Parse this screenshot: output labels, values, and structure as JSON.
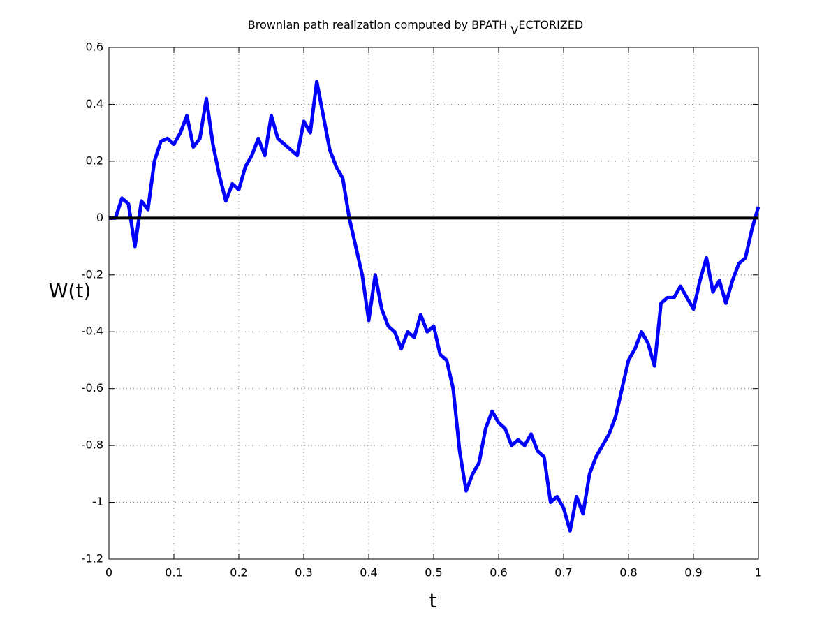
{
  "chart_data": {
    "type": "line",
    "title": {
      "main": "Brownian path realization computed by BPATH ",
      "subscript": "V",
      "rest": "ECTORIZED"
    },
    "xlabel": "t",
    "ylabel": "W(t)",
    "x": [
      0,
      0.01,
      0.02,
      0.03,
      0.04,
      0.05,
      0.06,
      0.07,
      0.08,
      0.09,
      0.1,
      0.11,
      0.12,
      0.13,
      0.14,
      0.15,
      0.16,
      0.17,
      0.18,
      0.19,
      0.2,
      0.21,
      0.22,
      0.23,
      0.24,
      0.25,
      0.26,
      0.27,
      0.28,
      0.29,
      0.3,
      0.31,
      0.32,
      0.33,
      0.34,
      0.35,
      0.36,
      0.37,
      0.38,
      0.39,
      0.4,
      0.41,
      0.42,
      0.43,
      0.44,
      0.45,
      0.46,
      0.47,
      0.48,
      0.49,
      0.5,
      0.51,
      0.52,
      0.53,
      0.54,
      0.55,
      0.56,
      0.57,
      0.58,
      0.59,
      0.6,
      0.61,
      0.62,
      0.63,
      0.64,
      0.65,
      0.66,
      0.67,
      0.68,
      0.69,
      0.7,
      0.71,
      0.72,
      0.73,
      0.74,
      0.75,
      0.76,
      0.77,
      0.78,
      0.79,
      0.8,
      0.81,
      0.82,
      0.83,
      0.84,
      0.85,
      0.86,
      0.87,
      0.88,
      0.89,
      0.9,
      0.91,
      0.92,
      0.93,
      0.94,
      0.95,
      0.96,
      0.97,
      0.98,
      0.99,
      1
    ],
    "series": [
      {
        "color": "#0000ff",
        "values": [
          0,
          0,
          0.07,
          0.05,
          -0.1,
          0.06,
          0.03,
          0.2,
          0.27,
          0.28,
          0.26,
          0.3,
          0.36,
          0.25,
          0.28,
          0.42,
          0.26,
          0.15,
          0.06,
          0.12,
          0.1,
          0.18,
          0.22,
          0.28,
          0.22,
          0.36,
          0.28,
          0.26,
          0.24,
          0.22,
          0.34,
          0.3,
          0.48,
          0.36,
          0.24,
          0.18,
          0.14,
          0,
          -0.1,
          -0.2,
          -0.36,
          -0.2,
          -0.32,
          -0.38,
          -0.4,
          -0.46,
          -0.4,
          -0.42,
          -0.34,
          -0.4,
          -0.38,
          -0.48,
          -0.5,
          -0.6,
          -0.82,
          -0.96,
          -0.9,
          -0.86,
          -0.74,
          -0.68,
          -0.72,
          -0.74,
          -0.8,
          -0.78,
          -0.8,
          -0.76,
          -0.82,
          -0.84,
          -1,
          -0.98,
          -1.02,
          -1.1,
          -0.98,
          -1.04,
          -0.9,
          -0.84,
          -0.8,
          -0.76,
          -0.7,
          -0.6,
          -0.5,
          -0.46,
          -0.4,
          -0.44,
          -0.52,
          -0.3,
          -0.28,
          -0.28,
          -0.24,
          -0.28,
          -0.32,
          -0.22,
          -0.14,
          -0.26,
          -0.22,
          -0.3,
          -0.22,
          -0.16,
          -0.14,
          -0.04,
          0.04
        ]
      }
    ],
    "hline": {
      "value": 0,
      "color": "#000000"
    },
    "xlim": [
      0,
      1
    ],
    "ylim": [
      -1.2,
      0.6
    ],
    "xticks": [
      0,
      0.1,
      0.2,
      0.3,
      0.4,
      0.5,
      0.6,
      0.7,
      0.8,
      0.9,
      1
    ],
    "yticks": [
      -1.2,
      -1,
      -0.8,
      -0.6,
      -0.4,
      -0.2,
      0,
      0.2,
      0.4,
      0.6
    ],
    "grid": true
  }
}
